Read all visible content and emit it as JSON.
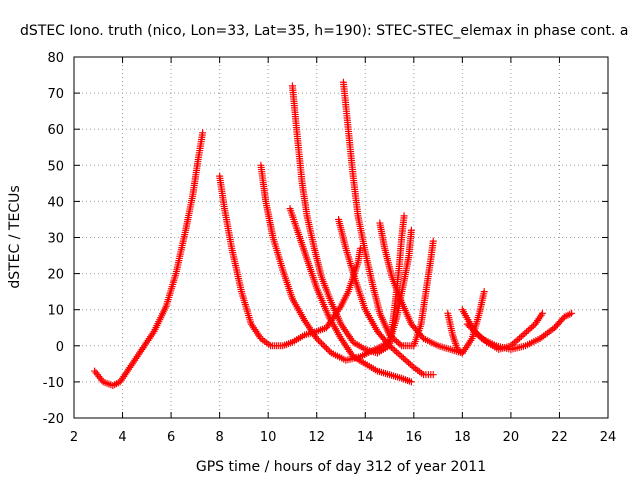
{
  "chart_data": {
    "type": "scatter",
    "title": "dSTEC Iono. truth (nico, Lon=33, Lat=35, h=190): STEC-STEC_elemax in phase cont. a",
    "xlabel": "GPS time / hours of day 312 of year 2011",
    "ylabel": "dSTEC  / TECUs",
    "xlim": [
      2,
      24
    ],
    "ylim": [
      -20,
      80
    ],
    "xticks": [
      2,
      4,
      6,
      8,
      10,
      12,
      14,
      16,
      18,
      20,
      22,
      24
    ],
    "yticks": [
      -20,
      -10,
      0,
      10,
      20,
      30,
      40,
      50,
      60,
      70,
      80
    ],
    "grid": true,
    "marker": "plus",
    "color": "#ff0000",
    "series": [
      {
        "points": [
          [
            2.85,
            -7
          ],
          [
            3.2,
            -10
          ],
          [
            3.6,
            -11
          ],
          [
            3.9,
            -10
          ],
          [
            4.3,
            -6
          ],
          [
            4.8,
            -1
          ],
          [
            5.3,
            4
          ],
          [
            5.8,
            11
          ],
          [
            6.2,
            20
          ],
          [
            6.6,
            32
          ],
          [
            6.9,
            42
          ],
          [
            7.1,
            51
          ],
          [
            7.3,
            59
          ]
        ]
      },
      {
        "points": [
          [
            8.0,
            47
          ],
          [
            8.2,
            38
          ],
          [
            8.5,
            27
          ],
          [
            8.9,
            15
          ],
          [
            9.3,
            6
          ],
          [
            9.7,
            2
          ],
          [
            10.1,
            0
          ],
          [
            10.6,
            0
          ],
          [
            11.0,
            1
          ],
          [
            11.5,
            3
          ],
          [
            12.0,
            4
          ],
          [
            12.4,
            5
          ],
          [
            12.7,
            8
          ],
          [
            13.0,
            11
          ],
          [
            13.3,
            15
          ],
          [
            13.5,
            19
          ],
          [
            13.7,
            23
          ],
          [
            13.8,
            27
          ]
        ]
      },
      {
        "points": [
          [
            9.7,
            50
          ],
          [
            9.9,
            40
          ],
          [
            10.2,
            30
          ],
          [
            10.6,
            21
          ],
          [
            11.0,
            13
          ],
          [
            11.5,
            7
          ],
          [
            12.0,
            2
          ],
          [
            12.6,
            -2
          ],
          [
            13.2,
            -4
          ],
          [
            13.8,
            -3
          ],
          [
            14.4,
            -1
          ],
          [
            15.0,
            1
          ],
          [
            15.3,
            8
          ],
          [
            15.6,
            18
          ],
          [
            15.8,
            25
          ],
          [
            15.9,
            32
          ]
        ]
      },
      {
        "points": [
          [
            11.0,
            72
          ],
          [
            11.2,
            58
          ],
          [
            11.4,
            45
          ],
          [
            11.6,
            36
          ],
          [
            11.9,
            27
          ],
          [
            12.2,
            19
          ],
          [
            12.6,
            12
          ],
          [
            13.0,
            6
          ],
          [
            13.5,
            1
          ],
          [
            14.0,
            -1
          ],
          [
            14.5,
            -2
          ],
          [
            15.0,
            0
          ],
          [
            15.2,
            10
          ],
          [
            15.4,
            22
          ],
          [
            15.5,
            30
          ],
          [
            15.6,
            36
          ]
        ]
      },
      {
        "points": [
          [
            10.9,
            38
          ],
          [
            11.2,
            32
          ],
          [
            11.6,
            24
          ],
          [
            12.0,
            16
          ],
          [
            12.5,
            8
          ],
          [
            13.0,
            2
          ],
          [
            13.5,
            -3
          ],
          [
            14.0,
            -5
          ],
          [
            14.5,
            -7
          ],
          [
            15.0,
            -8
          ],
          [
            15.5,
            -9
          ],
          [
            15.9,
            -10
          ]
        ]
      },
      {
        "points": [
          [
            13.1,
            73
          ],
          [
            13.3,
            60
          ],
          [
            13.5,
            47
          ],
          [
            13.7,
            36
          ],
          [
            14.0,
            26
          ],
          [
            14.3,
            17
          ],
          [
            14.6,
            9
          ],
          [
            15.0,
            3
          ],
          [
            15.5,
            0
          ],
          [
            16.0,
            0
          ],
          [
            16.3,
            6
          ],
          [
            16.5,
            15
          ],
          [
            16.7,
            24
          ],
          [
            16.8,
            29
          ]
        ]
      },
      {
        "points": [
          [
            12.9,
            35
          ],
          [
            13.2,
            27
          ],
          [
            13.6,
            18
          ],
          [
            14.0,
            10
          ],
          [
            14.5,
            4
          ],
          [
            15.0,
            0
          ],
          [
            15.5,
            -3
          ],
          [
            16.0,
            -6
          ],
          [
            16.4,
            -8
          ],
          [
            16.8,
            -8
          ]
        ]
      },
      {
        "points": [
          [
            14.6,
            34
          ],
          [
            14.8,
            27
          ],
          [
            15.1,
            19
          ],
          [
            15.5,
            12
          ],
          [
            15.9,
            6
          ],
          [
            16.4,
            2
          ],
          [
            17.0,
            0
          ],
          [
            17.5,
            -1
          ],
          [
            18.0,
            -2
          ],
          [
            18.4,
            2
          ],
          [
            18.7,
            9
          ],
          [
            18.9,
            15
          ]
        ]
      },
      {
        "points": [
          [
            17.4,
            9
          ],
          [
            17.6,
            3
          ],
          [
            17.8,
            -1
          ],
          [
            18.0,
            -2
          ]
        ]
      },
      {
        "points": [
          [
            18.0,
            10
          ],
          [
            18.5,
            4
          ],
          [
            19.0,
            1
          ],
          [
            19.5,
            -1
          ],
          [
            20.0,
            0
          ],
          [
            20.5,
            3
          ],
          [
            21.0,
            6
          ],
          [
            21.3,
            9
          ]
        ]
      },
      {
        "points": [
          [
            18.2,
            6
          ],
          [
            18.8,
            2
          ],
          [
            19.4,
            0
          ],
          [
            20.0,
            -1
          ],
          [
            20.6,
            0
          ],
          [
            21.2,
            2
          ],
          [
            21.8,
            5
          ],
          [
            22.2,
            8
          ],
          [
            22.5,
            9
          ]
        ]
      }
    ]
  }
}
